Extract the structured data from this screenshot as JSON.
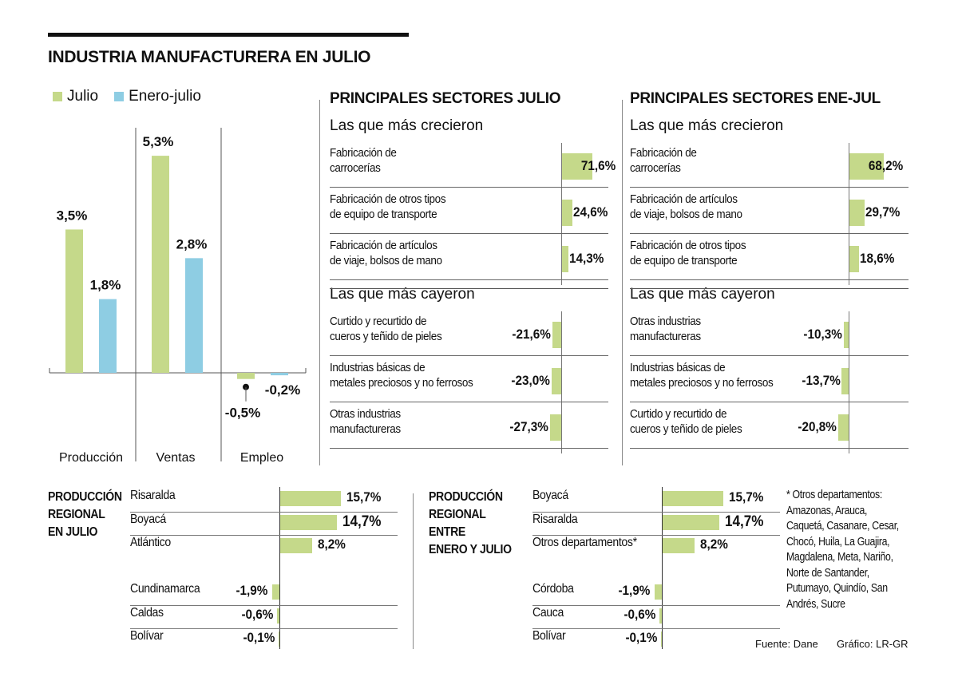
{
  "title": "INDUSTRIA MANUFACTURERA EN JULIO",
  "colors": {
    "julio": "#c5d98a",
    "enero_julio": "#8ecde3",
    "text": "#111111",
    "line": "#555555"
  },
  "legend": [
    {
      "label": "Julio",
      "color": "#c5d98a"
    },
    {
      "label": "Enero-julio",
      "color": "#8ecde3"
    }
  ],
  "chart_data": [
    {
      "type": "bar",
      "title": "INDUSTRIA MANUFACTURERA EN JULIO",
      "categories": [
        "Producción",
        "Ventas",
        "Empleo"
      ],
      "series": [
        {
          "name": "Julio",
          "values": [
            3.5,
            5.3,
            -0.5
          ],
          "labels": [
            "3,5%",
            "5,3%",
            "-0,5%"
          ]
        },
        {
          "name": "Enero-julio",
          "values": [
            1.8,
            2.8,
            -0.2
          ],
          "labels": [
            "1,8%",
            "2,8%",
            "-0,2%"
          ]
        }
      ],
      "ylim": [
        -0.5,
        5.3
      ],
      "legend_position": "top-left",
      "unit": "%"
    },
    {
      "type": "bar",
      "orientation": "horizontal",
      "title": "PRINCIPALES SECTORES JULIO",
      "groups": [
        {
          "subtitle": "Las que más crecieron",
          "rows": [
            {
              "label_lines": [
                "Fabricación de",
                "carrocerías"
              ],
              "value": 71.6,
              "label": "71,6%"
            },
            {
              "label_lines": [
                "Fabricación de otros tipos",
                "de equipo de transporte"
              ],
              "value": 24.6,
              "label": "24,6%"
            },
            {
              "label_lines": [
                "Fabricación de artículos",
                "de viaje, bolsos de mano"
              ],
              "value": 14.3,
              "label": "14,3%"
            }
          ]
        },
        {
          "subtitle": "Las que más cayeron",
          "rows": [
            {
              "label_lines": [
                "Curtido y recurtido de",
                "cueros y teñido de pieles"
              ],
              "value": -21.6,
              "label": "-21,6%"
            },
            {
              "label_lines": [
                "Industrias básicas de",
                "metales preciosos y no ferrosos"
              ],
              "value": -23.0,
              "label": "-23,0%"
            },
            {
              "label_lines": [
                "Otras industrias",
                "manufactureras"
              ],
              "value": -27.3,
              "label": "-27,3%"
            }
          ]
        }
      ]
    },
    {
      "type": "bar",
      "orientation": "horizontal",
      "title": "PRINCIPALES SECTORES ENE-JUL",
      "groups": [
        {
          "subtitle": "Las que más crecieron",
          "rows": [
            {
              "label_lines": [
                "Fabricación de",
                "carrocerías"
              ],
              "value": 68.2,
              "label": "68,2%"
            },
            {
              "label_lines": [
                "Fabricación de artículos",
                "de viaje, bolsos de mano"
              ],
              "value": 29.7,
              "label": "29,7%"
            },
            {
              "label_lines": [
                "Fabricación de otros tipos",
                "de equipo de transporte"
              ],
              "value": 18.6,
              "label": "18,6%"
            }
          ]
        },
        {
          "subtitle": "Las que más cayeron",
          "rows": [
            {
              "label_lines": [
                "Otras industrias",
                "manufactureras"
              ],
              "value": -10.3,
              "label": "-10,3%"
            },
            {
              "label_lines": [
                "Industrias básicas de",
                "metales preciosos y no ferrosos"
              ],
              "value": -13.7,
              "label": "-13,7%"
            },
            {
              "label_lines": [
                "Curtido y recurtido de",
                "cueros y teñido de pieles"
              ],
              "value": -20.8,
              "label": "-20,8%"
            }
          ]
        }
      ]
    },
    {
      "type": "bar",
      "orientation": "horizontal",
      "title_lines": [
        "PRODUCCIÓN",
        "REGIONAL",
        "EN JULIO"
      ],
      "positive": [
        {
          "label": "Risaralda",
          "value": 15.7,
          "text": "15,7%"
        },
        {
          "label": "Boyacá",
          "value": 14.7,
          "text": "14,7%"
        },
        {
          "label": "Atlántico",
          "value": 8.2,
          "text": "8,2%"
        }
      ],
      "negative": [
        {
          "label": "Cundinamarca",
          "value": -1.9,
          "text": "-1,9%"
        },
        {
          "label": "Caldas",
          "value": -0.6,
          "text": "-0,6%"
        },
        {
          "label": "Bolívar",
          "value": -0.1,
          "text": "-0,1%"
        }
      ]
    },
    {
      "type": "bar",
      "orientation": "horizontal",
      "title_lines": [
        "PRODUCCIÓN",
        "REGIONAL",
        "ENTRE",
        "ENERO Y JULIO"
      ],
      "positive": [
        {
          "label": "Boyacá",
          "value": 15.7,
          "text": "15,7%"
        },
        {
          "label": "Risaralda",
          "value": 14.7,
          "text": "14,7%"
        },
        {
          "label": "Otros departamentos*",
          "value": 8.2,
          "text": "8,2%"
        }
      ],
      "negative": [
        {
          "label": "Córdoba",
          "value": -1.9,
          "text": "-1,9%"
        },
        {
          "label": "Cauca",
          "value": -0.6,
          "text": "-0,6%"
        },
        {
          "label": "Bolívar",
          "value": -0.1,
          "text": "-0,1%"
        }
      ]
    }
  ],
  "footnote_lines": [
    "* Otros departamentos:",
    "Amazonas, Arauca,",
    "Caquetá, Casanare, Cesar,",
    "Chocó, Huila, La Guajira,",
    "Magdalena, Meta, Nariño,",
    "Norte de Santander,",
    "Putumayo, Quindío, San",
    "Andrés, Sucre"
  ],
  "source": "Fuente: Dane",
  "credit": "Gráfico: LR-GR"
}
